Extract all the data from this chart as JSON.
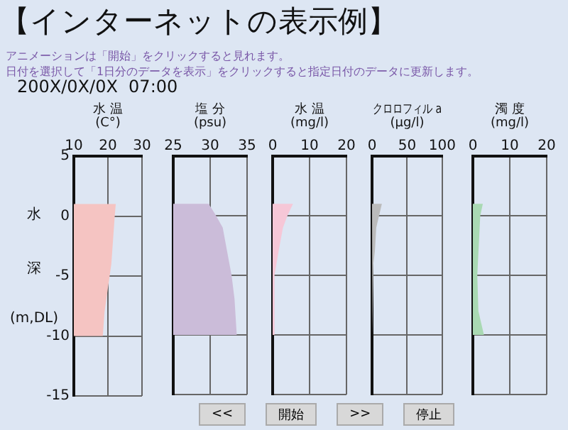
{
  "chart_data": [
    {
      "type": "area",
      "orientation": "horizontal",
      "title": "【インターネットの表示例】",
      "subtitle": "アニメーションは「開始」をクリックすると見れます。",
      "annotations": [
        "200X/0X/0X  07:00",
        "日付を選択して「1日分のデータを表示」をクリックすると指定日付のデータに更新します。",
        "<<",
        "開始",
        ">>",
        "停止"
      ],
      "ylabel": "水深(m,DL)",
      "xlabel": "水 温\n(C°)",
      "x": [
        1,
        0,
        -2,
        -4,
        -5,
        -6,
        -7,
        -8,
        -10
      ],
      "values": [
        22.3,
        22,
        21.5,
        21,
        20.5,
        20,
        19.5,
        19,
        18.5
      ],
      "color": "#f5c4c2",
      "xlim": [
        10,
        30
      ],
      "xticks": [
        10,
        20,
        30
      ],
      "ylim": [
        -15,
        5
      ],
      "yticks": [
        5,
        0,
        -5,
        -10,
        -15
      ],
      "grid": true
    },
    {
      "type": "area",
      "orientation": "horizontal",
      "xlabel": "塩 分\n(psu)",
      "x": [
        1,
        0,
        -1,
        -3,
        -5,
        -7,
        -10
      ],
      "values": [
        29.8,
        30.8,
        31.7,
        32.3,
        32.9,
        33.3,
        33.6
      ],
      "color": "#cbbcd9",
      "xlim": [
        25,
        35
      ],
      "xticks": [
        25,
        30,
        35
      ],
      "ylim": [
        -15,
        5
      ],
      "yticks": [
        5,
        0,
        -5,
        -10,
        -15
      ],
      "grid": true,
      "tick_labels": "x"
    },
    {
      "type": "area",
      "orientation": "horizontal",
      "xlabel": "水 温\n(mg/l)",
      "x": [
        1,
        0,
        -1,
        -3,
        -5,
        -10
      ],
      "values": [
        5.5,
        4,
        2.8,
        1.6,
        0.5,
        0.5
      ],
      "color": "#f6c7d7",
      "xlim": [
        0,
        20
      ],
      "xticks": [
        0,
        10,
        20
      ],
      "ylim": [
        -15,
        5
      ],
      "yticks": [
        5,
        0,
        -5,
        -10,
        -15
      ],
      "grid": true,
      "tick_labels": "x"
    },
    {
      "type": "area",
      "orientation": "horizontal",
      "xlabel": "クロロフィル a\n(μg/l)",
      "x": [
        1,
        0,
        -1,
        -3,
        -4,
        -10
      ],
      "values": [
        14,
        10,
        6,
        4,
        2,
        1
      ],
      "color": "#bbbbbb",
      "xlim": [
        0,
        100
      ],
      "xticks": [
        0,
        50,
        100
      ],
      "ylim": [
        -15,
        5
      ],
      "yticks": [
        5,
        0,
        -5,
        -10,
        -15
      ],
      "grid": true,
      "tick_labels": "x"
    },
    {
      "type": "area",
      "orientation": "horizontal",
      "xlabel": "濁 度\n(mg/l)",
      "x": [
        1,
        0,
        -5,
        -8,
        -10
      ],
      "values": [
        2.7,
        2,
        1.2,
        1.5,
        3
      ],
      "color": "#a9d9b3",
      "xlim": [
        0,
        20
      ],
      "xticks": [
        0,
        10,
        20
      ],
      "ylim": [
        -15,
        5
      ],
      "yticks": [
        5,
        0,
        -5,
        -10,
        -15
      ],
      "grid": true,
      "tick_labels": "x"
    }
  ]
}
